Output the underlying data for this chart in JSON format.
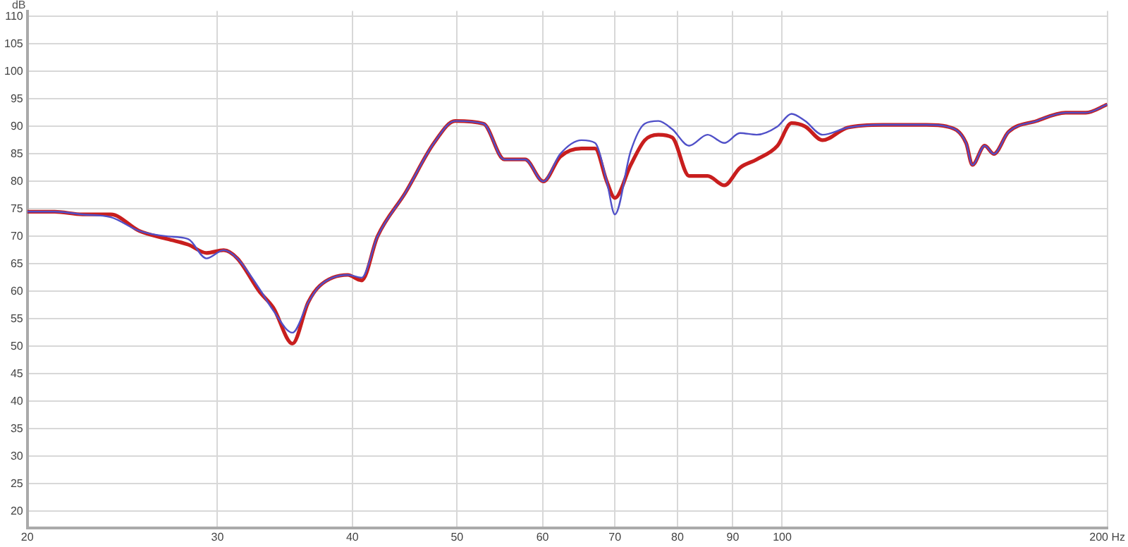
{
  "chart_data": {
    "type": "line",
    "ylabel": "dB",
    "log": "x",
    "xlim": [
      20,
      200
    ],
    "ylim": [
      17,
      111
    ],
    "xticks": [
      20,
      30,
      40,
      50,
      60,
      70,
      80,
      90,
      100,
      {
        "value": 200,
        "label": "200 Hz"
      }
    ],
    "yticks": [
      20,
      25,
      30,
      35,
      40,
      45,
      50,
      55,
      60,
      65,
      70,
      75,
      80,
      85,
      90,
      95,
      100,
      105,
      110
    ],
    "grid": true,
    "legend": false,
    "marker": "none",
    "line_style": "solid",
    "x": [
      20,
      21.2,
      22.5,
      23.9,
      25.4,
      27,
      28.2,
      29.3,
      30.4,
      31.3,
      32.8,
      33.8,
      35.2,
      36.4,
      37.3,
      39.6,
      40.8,
      42.2,
      44.8,
      47.6,
      49.8,
      52.9,
      55.3,
      57.8,
      60.1,
      62.3,
      65.2,
      67.1,
      68.8,
      70,
      72.4,
      74.6,
      76.8,
      79.1,
      82,
      85.3,
      88.4,
      91.4,
      94.7,
      99,
      102,
      105,
      109,
      115,
      124,
      136,
      142,
      148,
      150,
      154,
      157,
      162,
      172,
      183,
      191,
      200
    ],
    "series": [
      {
        "color": "#c81e1e",
        "values": [
          74.5,
          74.5,
          74,
          74,
          71,
          69.5,
          68.5,
          67,
          67.5,
          66,
          60,
          57,
          50.5,
          58,
          61,
          63,
          62,
          70,
          78,
          87,
          91,
          90.5,
          84,
          84,
          80,
          84.5,
          86,
          86,
          80,
          77,
          83,
          87.5,
          88.5,
          88,
          81,
          81,
          79.3,
          82.5,
          84,
          86.5,
          90.6,
          90,
          87.5,
          89.8,
          90.3,
          90.3,
          90,
          87,
          83,
          86.5,
          85,
          89,
          91,
          92.5,
          92.5,
          94
        ]
      },
      {
        "color": "#5050c8",
        "values": [
          74.5,
          74.5,
          74,
          73.5,
          71,
          70,
          69.5,
          66,
          67.5,
          66,
          60.5,
          56.5,
          52.5,
          58,
          61,
          63,
          62.5,
          70,
          78,
          87,
          91,
          90.5,
          84,
          84,
          80,
          85,
          87.5,
          87,
          80,
          74,
          85.5,
          90.5,
          91,
          89.5,
          86.5,
          88.5,
          87,
          88.8,
          88.5,
          90,
          92.3,
          91,
          88.5,
          89.8,
          90.3,
          90.3,
          90,
          87,
          83,
          86.5,
          85,
          89,
          91,
          92.5,
          92.5,
          94
        ]
      }
    ]
  }
}
